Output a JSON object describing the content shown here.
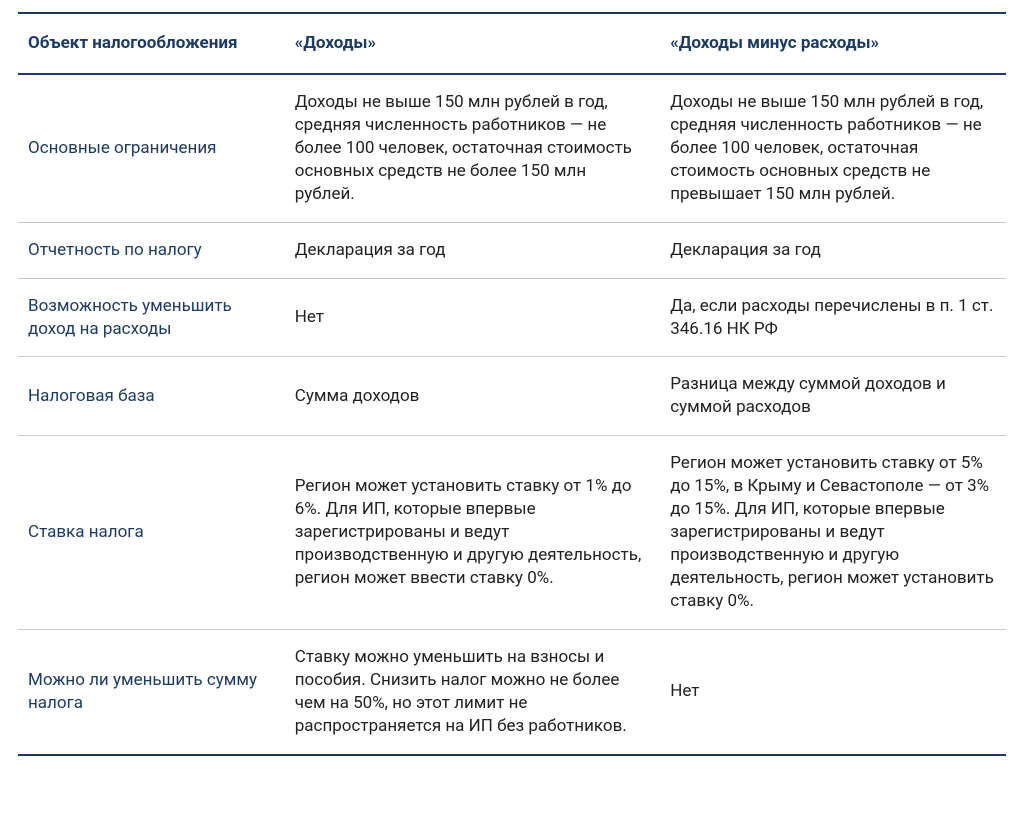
{
  "table": {
    "columns": [
      "Объект налогообложения",
      "«Доходы»",
      "«Доходы минус расходы»"
    ],
    "rows": [
      {
        "label": "Основные ограничения",
        "a": "Доходы не выше 150 млн рублей в год, средняя численность работников — не более 100 человек, остаточная стоимость основных средств не более 150 млн рублей.",
        "b": "Доходы не выше 150 млн рублей в год, средняя численность работников — не более 100 человек, остаточная стоимость основных средств не превышает 150 млн рублей."
      },
      {
        "label": "Отчетность по налогу",
        "a": "Декларация за год",
        "b": "Декларация за год"
      },
      {
        "label": "Возможность уменьшить доход на расходы",
        "a": "Нет",
        "b": "Да, если расходы перечислены в п. 1 ст. 346.16 НК РФ"
      },
      {
        "label": "Налоговая база",
        "a": "Сумма доходов",
        "b": "Разница между суммой доходов и суммой расходов"
      },
      {
        "label": "Ставка налога",
        "a": "Регион может установить ставку от 1% до 6%. Для ИП, которые впервые зарегистрированы и ведут производственную и другую деятельность, регион может ввести ставку 0%.",
        "b": "Регион может установить ставку от 5% до 15%, в Крыму и Севастополе — от 3% до 15%. Для ИП, которые впервые зарегистрированы и ведут производственную и другую деятельность, регион может установить ставку 0%."
      },
      {
        "label": "Можно ли уменьшить сумму налога",
        "a": "Ставку можно уменьшить на взносы и пособия. Снизить налог можно не более чем на 50%, но этот лимит не распространяется на ИП без работников.",
        "b": "Нет"
      }
    ],
    "colors": {
      "header_text": "#1c3a66",
      "header_border": "#1c3a66",
      "body_text": "#222222",
      "row_border": "#c9c9c9",
      "background": "#ffffff"
    },
    "column_widths_pct": [
      27,
      38,
      35
    ],
    "font_size_pt": 13,
    "line_height": 1.35
  }
}
